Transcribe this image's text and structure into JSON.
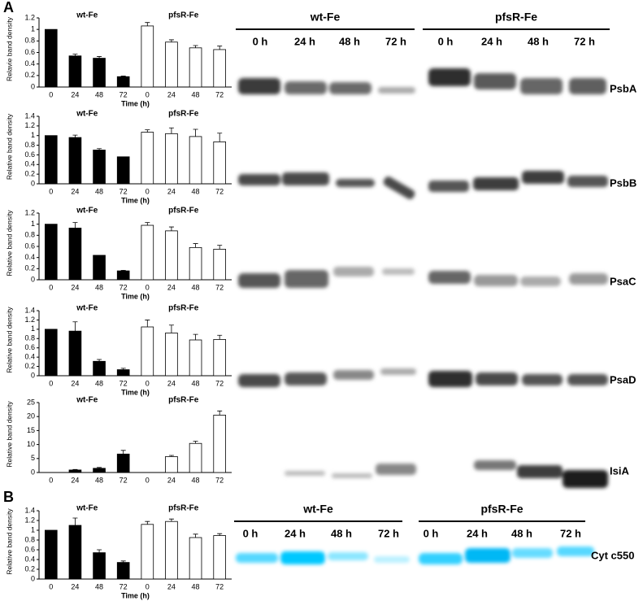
{
  "panel_labels": [
    "A",
    "B"
  ],
  "chart_data": [
    {
      "type": "bar",
      "ylabel": "Relavie band density",
      "xlabel": "Time (h)",
      "annotations": [
        "wt-Fe",
        "pfsR-Fe"
      ],
      "categories": [
        "0",
        "24",
        "48",
        "72",
        "0",
        "24",
        "48",
        "72"
      ],
      "values": [
        1.0,
        0.54,
        0.5,
        0.18,
        1.06,
        0.78,
        0.68,
        0.65
      ],
      "errors": [
        0,
        0.03,
        0.03,
        0.01,
        0.06,
        0.04,
        0.04,
        0.06
      ],
      "colors": [
        "#000000",
        "#000000",
        "#000000",
        "#000000",
        "#ffffff",
        "#ffffff",
        "#ffffff",
        "#ffffff"
      ],
      "ylim": [
        0,
        1.2
      ],
      "yticks": [
        0,
        0.2,
        0.4,
        0.6,
        0.8,
        1,
        1.2
      ]
    },
    {
      "type": "bar",
      "ylabel": "Relative band density",
      "xlabel": "Time (h)",
      "annotations": [
        "wt-Fe",
        "pfsR-Fe"
      ],
      "categories": [
        "0",
        "24",
        "48",
        "72",
        "0",
        "24",
        "48",
        "72"
      ],
      "values": [
        1.0,
        0.96,
        0.7,
        0.56,
        1.07,
        1.04,
        0.98,
        0.87
      ],
      "errors": [
        0,
        0.05,
        0.03,
        0,
        0.05,
        0.12,
        0.15,
        0.18
      ],
      "colors": [
        "#000000",
        "#000000",
        "#000000",
        "#000000",
        "#ffffff",
        "#ffffff",
        "#ffffff",
        "#ffffff"
      ],
      "ylim": [
        0,
        1.4
      ],
      "yticks": [
        0,
        0.2,
        0.4,
        0.6,
        0.8,
        1,
        1.2,
        1.4
      ]
    },
    {
      "type": "bar",
      "ylabel": "Relative band density",
      "xlabel": "Time (h)",
      "annotations": [
        "wt-Fe",
        "pfsR-Fe"
      ],
      "categories": [
        "0",
        "24",
        "48",
        "72",
        "0",
        "24",
        "48",
        "72"
      ],
      "values": [
        1.0,
        0.93,
        0.44,
        0.16,
        0.98,
        0.88,
        0.58,
        0.55
      ],
      "errors": [
        0,
        0.1,
        0,
        0.01,
        0.05,
        0.07,
        0.07,
        0.07
      ],
      "colors": [
        "#000000",
        "#000000",
        "#000000",
        "#000000",
        "#ffffff",
        "#ffffff",
        "#ffffff",
        "#ffffff"
      ],
      "ylim": [
        0,
        1.2
      ],
      "yticks": [
        0,
        0.2,
        0.4,
        0.6,
        0.8,
        1,
        1.2
      ]
    },
    {
      "type": "bar",
      "ylabel": "Relative band density",
      "xlabel": "Time (h)",
      "annotations": [
        "wt-Fe",
        "pfsR-Fe"
      ],
      "categories": [
        "0",
        "24",
        "48",
        "72",
        "0",
        "24",
        "48",
        "72"
      ],
      "values": [
        1.0,
        0.96,
        0.31,
        0.13,
        1.05,
        0.92,
        0.77,
        0.78
      ],
      "errors": [
        0,
        0.2,
        0.04,
        0.03,
        0.15,
        0.17,
        0.12,
        0.09
      ],
      "colors": [
        "#000000",
        "#000000",
        "#000000",
        "#000000",
        "#ffffff",
        "#ffffff",
        "#ffffff",
        "#ffffff"
      ],
      "ylim": [
        0,
        1.4
      ],
      "yticks": [
        0,
        0.2,
        0.4,
        0.6,
        0.8,
        1,
        1.2,
        1.4
      ]
    },
    {
      "type": "bar",
      "ylabel": "Relative band density",
      "annotations": [
        "wt-Fe",
        "pfsR-Fe"
      ],
      "categories": [
        "0",
        "24",
        "48",
        "72",
        "0",
        "24",
        "48",
        "72"
      ],
      "values": [
        0,
        0.9,
        1.5,
        6.6,
        0,
        5.7,
        10.4,
        20.5
      ],
      "errors": [
        0,
        0.2,
        0.3,
        1.3,
        0,
        0.4,
        0.8,
        1.5
      ],
      "colors": [
        "#000000",
        "#000000",
        "#000000",
        "#000000",
        "#ffffff",
        "#ffffff",
        "#ffffff",
        "#ffffff"
      ],
      "ylim": [
        0,
        25
      ],
      "yticks": [
        0,
        5,
        10,
        15,
        20,
        25
      ]
    },
    {
      "type": "bar",
      "ylabel": "Relative band density",
      "xlabel": "Time (h)",
      "annotations": [
        "wt-Fe",
        "pfsR-Fe"
      ],
      "categories": [
        "0",
        "24",
        "48",
        "72",
        "0",
        "24",
        "48",
        "72"
      ],
      "values": [
        1.0,
        1.1,
        0.54,
        0.34,
        1.12,
        1.18,
        0.85,
        0.89
      ],
      "errors": [
        0,
        0.15,
        0.06,
        0.03,
        0.06,
        0.05,
        0.07,
        0.04
      ],
      "colors": [
        "#000000",
        "#000000",
        "#000000",
        "#000000",
        "#ffffff",
        "#ffffff",
        "#ffffff",
        "#ffffff"
      ],
      "ylim": [
        0,
        1.4
      ],
      "yticks": [
        0,
        0.2,
        0.4,
        0.6,
        0.8,
        1,
        1.2,
        1.4
      ]
    }
  ],
  "blots": {
    "A": {
      "groups": [
        "wt-Fe",
        "pfsR-Fe"
      ],
      "lanes": [
        "0 h",
        "24 h",
        "48 h",
        "72 h"
      ],
      "proteins": [
        "PsbA",
        "PsbB",
        "PsaC",
        "PsaD",
        "IsiA"
      ]
    },
    "B": {
      "groups": [
        "wt-Fe",
        "pfsR-Fe"
      ],
      "lanes": [
        "0 h",
        "24 h",
        "48 h",
        "72 h"
      ],
      "proteins": [
        "Cyt c550"
      ]
    }
  }
}
